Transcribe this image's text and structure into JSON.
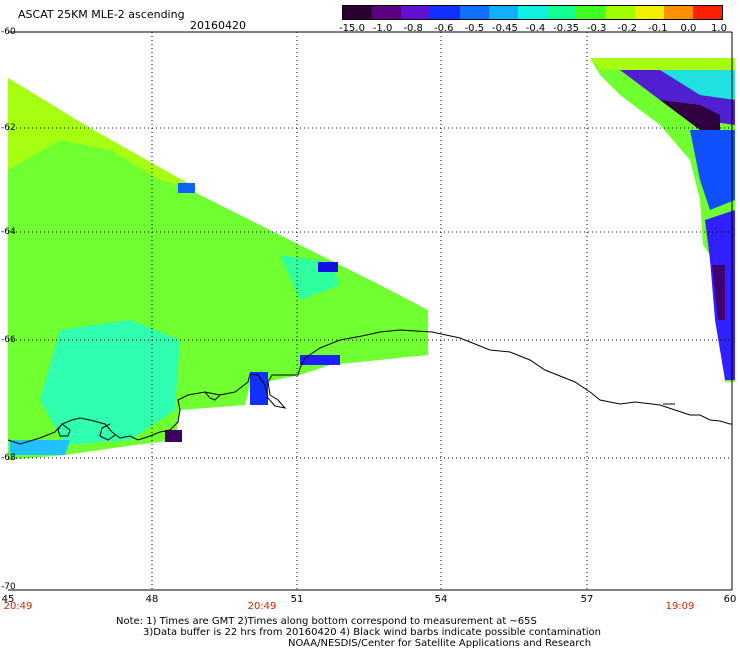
{
  "header": {
    "title": "ASCAT 25KM MLE-2 ascending",
    "date": "20160420"
  },
  "colorbar": {
    "labels": [
      "-15.0",
      "-1.0",
      "-0.8",
      "-0.6",
      "-0.5",
      "-0.45",
      "-0.4",
      "-0.35",
      "-0.3",
      "-0.2",
      "-0.1",
      "0.0",
      "1.0"
    ],
    "colors": [
      "#2a0030",
      "#5a0080",
      "#6010d0",
      "#1030ff",
      "#1070ff",
      "#10b0ff",
      "#10f0e0",
      "#10ff90",
      "#40ff20",
      "#a0ff00",
      "#f0f000",
      "#ff9000",
      "#ff2000"
    ]
  },
  "map": {
    "lat_labels": [
      "-60",
      "-62",
      "-64",
      "-66",
      "-68",
      "-70"
    ],
    "lon_labels": [
      "45",
      "48",
      "51",
      "54",
      "57",
      "60"
    ],
    "time_labels": [
      "20:49",
      "20:49",
      "19:09"
    ]
  },
  "footer": {
    "note_line1": "Note: 1) Times are GMT 2)Times along bottom correspond to measurement at ~65S",
    "note_line2": "3)Data buffer is 22 hrs from 20160420 4) Black wind barbs indicate possible contamination",
    "credit": "NOAA/NESDIS/Center for Satellite Applications and Research"
  }
}
